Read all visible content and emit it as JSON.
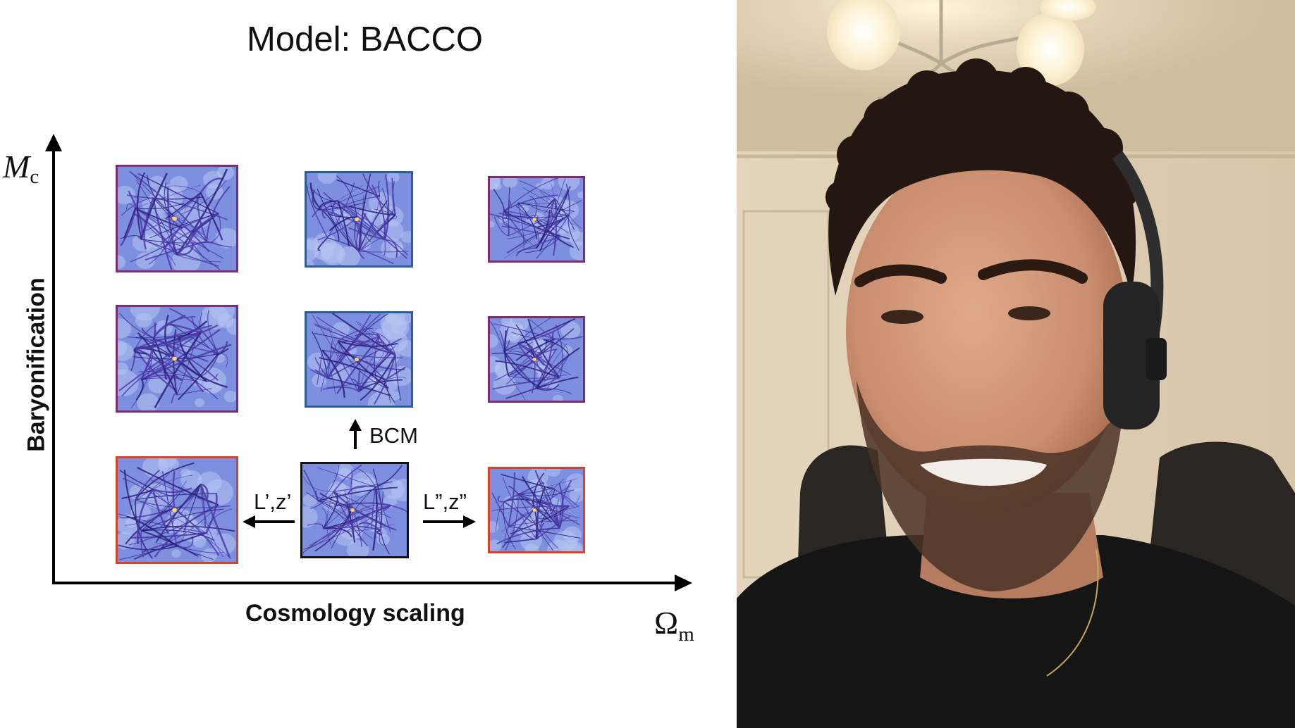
{
  "slide": {
    "title": "Model: BACCO",
    "y_axis_label": "Baryonification",
    "x_axis_label": "Cosmology scaling",
    "y_symbol": "M",
    "y_symbol_sub": "c",
    "x_symbol": "Ω",
    "x_symbol_sub": "m",
    "arrow_up_label": "BCM",
    "arrow_left_label": "L’,z’",
    "arrow_right_label": "L”,z”"
  },
  "colors": {
    "border_purple": "#7b2d6e",
    "border_blue": "#2b5e96",
    "border_red": "#d2452b",
    "border_black": "#111111",
    "web_base": "#7d8fde"
  },
  "panels": [
    {
      "name": "panel-top-left",
      "border": "purple"
    },
    {
      "name": "panel-top-center",
      "border": "blue"
    },
    {
      "name": "panel-top-right",
      "border": "purple"
    },
    {
      "name": "panel-middle-left",
      "border": "purple"
    },
    {
      "name": "panel-middle-center",
      "border": "blue"
    },
    {
      "name": "panel-middle-right",
      "border": "purple"
    },
    {
      "name": "panel-bottom-left",
      "border": "red"
    },
    {
      "name": "panel-bottom-center",
      "border": "black"
    },
    {
      "name": "panel-bottom-right",
      "border": "red"
    }
  ]
}
